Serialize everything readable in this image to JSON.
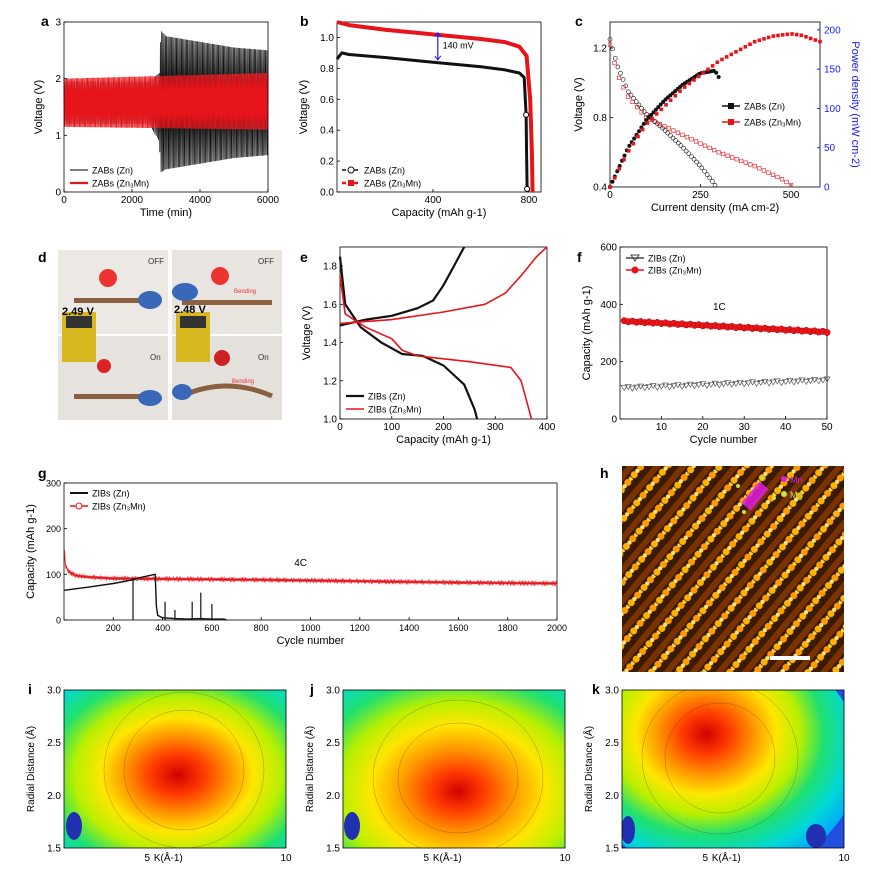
{
  "figure": {
    "colors": {
      "black": "#111111",
      "red": "#e8141b",
      "blue": "#1a1aff",
      "magenta": "#e01ee0",
      "yellowgreen": "#c8e04a"
    }
  },
  "chart_data": [
    {
      "panel": "a",
      "type": "line",
      "xlabel": "Time (min)",
      "ylabel": "Voltage (V)",
      "xlim": [
        0,
        6000
      ],
      "ylim": [
        0,
        3
      ],
      "xticks": [
        0,
        2000,
        4000,
        6000
      ],
      "yticks": [
        0,
        1,
        2,
        3
      ],
      "legend": [
        "ZABs (Zn)",
        "ZABs (Zn3Mn)"
      ],
      "legend_position": "bottom-left",
      "series": [
        {
          "name": "ZABs (Zn)",
          "color": "#111111",
          "x": [
            0,
            2500,
            2800,
            2850,
            3000,
            4000,
            5000,
            6000
          ],
          "upper": [
            1.95,
            1.95,
            2.1,
            2.85,
            2.75,
            2.65,
            2.55,
            2.5
          ],
          "lower": [
            1.2,
            1.2,
            0.9,
            0.35,
            0.4,
            0.5,
            0.6,
            0.65
          ]
        },
        {
          "name": "ZABs (Zn3Mn)",
          "color": "#e8141b",
          "x": [
            0,
            6000
          ],
          "upper": [
            2.0,
            2.1
          ],
          "lower": [
            1.15,
            1.1
          ]
        }
      ]
    },
    {
      "panel": "b",
      "type": "line",
      "xlabel": "Capacity (mAh g-1)",
      "ylabel": "Voltage (V)",
      "xlim": [
        0,
        850
      ],
      "ylim": [
        0,
        1.1
      ],
      "xticks": [
        400,
        800
      ],
      "yticks": [
        0,
        0.2,
        0.4,
        0.6,
        0.8,
        1.0
      ],
      "annotation": "140 mV",
      "legend": [
        "ZABs (Zn)",
        "ZABs (Zn3Mn)"
      ],
      "legend_position": "bottom-left",
      "series": [
        {
          "name": "ZABs (Zn)",
          "x": [
            0,
            20,
            50,
            200,
            400,
            600,
            700,
            760,
            780,
            788,
            790,
            792
          ],
          "y": [
            0.86,
            0.9,
            0.89,
            0.87,
            0.84,
            0.81,
            0.79,
            0.77,
            0.74,
            0.5,
            0.25,
            0.02
          ]
        },
        {
          "name": "ZABs (Zn3Mn)",
          "x": [
            0,
            50,
            200,
            400,
            600,
            700,
            760,
            790,
            805,
            812,
            815
          ],
          "y": [
            1.1,
            1.08,
            1.05,
            1.02,
            0.99,
            0.97,
            0.94,
            0.88,
            0.6,
            0.25,
            0.0
          ]
        }
      ]
    },
    {
      "panel": "c",
      "type": "line",
      "xlabel": "Current density (mA cm-2)",
      "ylabel": "Voltage (V)",
      "y2label": "Power density (mW cm-2)",
      "xlim": [
        0,
        580
      ],
      "ylim": [
        0.4,
        1.35
      ],
      "y2lim": [
        0,
        210
      ],
      "xticks": [
        0,
        250,
        500
      ],
      "yticks": [
        0.4,
        0.8,
        1.2
      ],
      "y2ticks": [
        0,
        50,
        100,
        150,
        200
      ],
      "legend": [
        "ZABs (Zn)",
        "ZABs (Zn3Mn)"
      ],
      "legend_position": "center-right",
      "series": [
        {
          "name": "ZABs (Zn) voltage",
          "x": [
            0,
            20,
            50,
            100,
            150,
            200,
            250,
            280,
            290
          ],
          "y": [
            1.25,
            1.1,
            0.95,
            0.82,
            0.73,
            0.63,
            0.52,
            0.44,
            0.41
          ]
        },
        {
          "name": "ZABs (Zn3Mn) voltage",
          "x": [
            0,
            20,
            50,
            100,
            200,
            300,
            400,
            480,
            500
          ],
          "y": [
            1.22,
            1.05,
            0.92,
            0.8,
            0.7,
            0.6,
            0.52,
            0.44,
            0.41
          ]
        },
        {
          "name": "ZABs (Zn) power",
          "x": [
            0,
            50,
            100,
            150,
            200,
            250,
            290,
            300
          ],
          "y": [
            0,
            50,
            85,
            110,
            130,
            145,
            148,
            140
          ]
        },
        {
          "name": "ZABs (Zn3Mn) power",
          "x": [
            0,
            50,
            100,
            200,
            300,
            400,
            450,
            500,
            530,
            580
          ],
          "y": [
            0,
            45,
            80,
            125,
            160,
            185,
            192,
            195,
            193,
            185
          ]
        }
      ]
    },
    {
      "panel": "d",
      "type": "photo",
      "labels": [
        "OFF",
        "OFF",
        "On",
        "On",
        "2.49 V",
        "2.48 V",
        "Bending",
        "Bending"
      ]
    },
    {
      "panel": "e",
      "type": "line",
      "xlabel": "Capacity (mAh g-1)",
      "ylabel": "Voltage (V)",
      "xlim": [
        0,
        400
      ],
      "ylim": [
        1.0,
        1.9
      ],
      "xticks": [
        0,
        100,
        200,
        300,
        400
      ],
      "yticks": [
        1.0,
        1.2,
        1.4,
        1.6,
        1.8
      ],
      "legend": [
        "ZIBs (Zn)",
        "ZIBs (Zn3Mn)"
      ],
      "legend_position": "bottom-left",
      "series": [
        {
          "name": "ZIBs (Zn) discharge",
          "x": [
            0,
            10,
            40,
            80,
            120,
            160,
            200,
            240,
            260,
            265
          ],
          "y": [
            1.85,
            1.6,
            1.48,
            1.4,
            1.34,
            1.33,
            1.28,
            1.18,
            1.05,
            1.0
          ]
        },
        {
          "name": "ZIBs (Zn) charge",
          "x": [
            0,
            50,
            100,
            150,
            180,
            200,
            220,
            240
          ],
          "y": [
            1.49,
            1.52,
            1.54,
            1.58,
            1.62,
            1.7,
            1.8,
            1.9
          ]
        },
        {
          "name": "ZIBs (Zn3Mn) discharge",
          "x": [
            0,
            10,
            50,
            100,
            120,
            150,
            250,
            330,
            350,
            365,
            370
          ],
          "y": [
            1.75,
            1.55,
            1.48,
            1.42,
            1.36,
            1.33,
            1.3,
            1.27,
            1.2,
            1.05,
            1.0
          ]
        },
        {
          "name": "ZIBs (Zn3Mn) charge",
          "x": [
            0,
            100,
            200,
            280,
            320,
            350,
            380,
            400
          ],
          "y": [
            1.5,
            1.52,
            1.56,
            1.6,
            1.66,
            1.75,
            1.85,
            1.9
          ]
        }
      ]
    },
    {
      "panel": "f",
      "type": "scatter",
      "xlabel": "Cycle number",
      "ylabel": "Capacity (mAh g-1)",
      "xlim": [
        0,
        50
      ],
      "ylim": [
        0,
        600
      ],
      "xticks": [
        10,
        20,
        30,
        40,
        50
      ],
      "yticks": [
        0,
        200,
        400,
        600
      ],
      "annotation": "1C",
      "legend": [
        "ZIBs (Zn)",
        "ZIBs (Zn3Mn)"
      ],
      "legend_position": "top-left",
      "series": [
        {
          "name": "ZIBs (Zn)",
          "x_start": 1,
          "x_end": 50,
          "y_start": 108,
          "y_end": 135
        },
        {
          "name": "ZIBs (Zn3Mn)",
          "x_start": 1,
          "x_end": 50,
          "y_start": 340,
          "y_end": 302
        }
      ]
    },
    {
      "panel": "g",
      "type": "line",
      "xlabel": "Cycle number",
      "ylabel": "Capacity (mAh g-1)",
      "xlim": [
        0,
        2000
      ],
      "ylim": [
        0,
        300
      ],
      "xticks": [
        200,
        400,
        600,
        800,
        1000,
        1200,
        1400,
        1600,
        1800,
        2000
      ],
      "yticks": [
        0,
        100,
        200,
        300
      ],
      "annotation": "4C",
      "legend": [
        "ZIBs (Zn)",
        "ZIBs (Zn3Mn)"
      ],
      "legend_position": "top-left",
      "series": [
        {
          "name": "ZIBs (Zn)",
          "x": [
            0,
            100,
            200,
            280,
            300,
            370,
            375,
            380,
            400,
            450,
            500,
            550,
            600,
            650,
            660
          ],
          "y": [
            65,
            72,
            80,
            88,
            92,
            100,
            30,
            10,
            5,
            3,
            2,
            3,
            2,
            2,
            0
          ]
        },
        {
          "name": "ZIBs (Zn3Mn)",
          "x": [
            0,
            5,
            20,
            50,
            100,
            200,
            400,
            800,
            1200,
            1600,
            2000
          ],
          "y": [
            180,
            120,
            105,
            97,
            94,
            91,
            90,
            88,
            85,
            82,
            80
          ]
        }
      ]
    },
    {
      "panel": "h",
      "type": "heatmap",
      "legend": [
        "Mn",
        "Mg"
      ],
      "legend_position": "top-right"
    },
    {
      "panel": "i",
      "type": "heatmap",
      "xlabel": "K(Å-1)",
      "ylabel": "Radial Distance (Å)",
      "xlim": [
        2,
        10
      ],
      "ylim": [
        1.5,
        3.0
      ],
      "xticks": [
        5,
        10
      ],
      "yticks": [
        1.5,
        2.0,
        2.5,
        3.0
      ]
    },
    {
      "panel": "j",
      "type": "heatmap",
      "xlabel": "K(Å-1)",
      "ylabel": "Radial Distance (Å)",
      "xlim": [
        2,
        10
      ],
      "ylim": [
        1.5,
        3.0
      ],
      "xticks": [
        5,
        10
      ],
      "yticks": [
        1.5,
        2.0,
        2.5,
        3.0
      ]
    },
    {
      "panel": "k",
      "type": "heatmap",
      "xlabel": "K(Å-1)",
      "ylabel": "Radial Distance (Å)",
      "xlim": [
        2,
        10
      ],
      "ylim": [
        1.5,
        3.0
      ],
      "xticks": [
        5,
        10
      ],
      "yticks": [
        1.5,
        2.0,
        2.5,
        3.0
      ]
    }
  ]
}
